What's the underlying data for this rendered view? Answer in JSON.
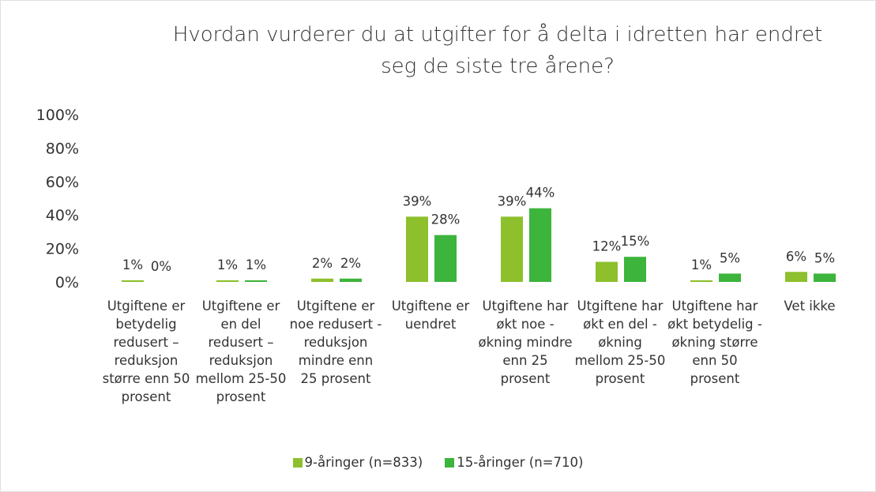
{
  "chart_data": {
    "type": "bar",
    "title": "Hvordan vurderer du at utgifter for å delta i idretten har endret seg de siste tre årene?",
    "categories": [
      "Utgiftene er betydelig redusert – reduksjon større enn 50 prosent",
      "Utgiftene er en del redusert – reduksjon mellom 25-50 prosent",
      "Utgiftene er noe redusert - reduksjon mindre enn 25 prosent",
      "Utgiftene er uendret",
      "Utgiftene har økt noe - økning mindre enn 25 prosent",
      "Utgiftene har økt en del - økning mellom 25-50 prosent",
      "Utgiftene har økt betydelig - økning større enn 50 prosent",
      "Vet ikke"
    ],
    "series": [
      {
        "name": "9-åringer (n=833)",
        "color": "#8dc02c",
        "values": [
          1,
          1,
          2,
          39,
          39,
          12,
          1,
          6
        ],
        "value_labels": [
          "1%",
          "1%",
          "2%",
          "39%",
          "39%",
          "12%",
          "1%",
          "6%"
        ]
      },
      {
        "name": "15-åringer (n=710)",
        "color": "#3db43c",
        "values": [
          0,
          1,
          2,
          28,
          44,
          15,
          5,
          5
        ],
        "value_labels": [
          "0%",
          "1%",
          "2%",
          "28%",
          "44%",
          "15%",
          "5%",
          "5%"
        ]
      }
    ],
    "ylim": [
      0,
      100
    ],
    "yticks": [
      {
        "value": 0,
        "label": "0%"
      },
      {
        "value": 20,
        "label": "20%"
      },
      {
        "value": 40,
        "label": "40%"
      },
      {
        "value": 60,
        "label": "60%"
      },
      {
        "value": 80,
        "label": "80%"
      },
      {
        "value": 100,
        "label": "100%"
      }
    ],
    "legend": "bottom"
  }
}
